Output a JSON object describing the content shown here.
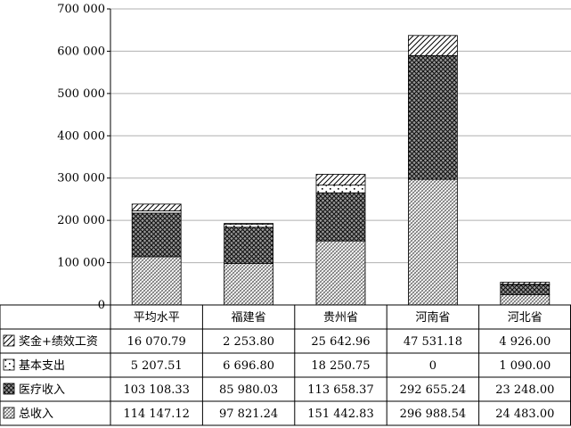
{
  "chart_data": {
    "type": "bar",
    "stacked": true,
    "categories": [
      "平均水平",
      "福建省",
      "贵州省",
      "河南省",
      "河北省"
    ],
    "series": [
      {
        "name": "总收入",
        "values": [
          114147.12,
          97821.24,
          151442.83,
          296988.54,
          24483.0
        ],
        "labels": [
          "114 147.12",
          "97 821.24",
          "151 442.83",
          "296 988.54",
          "24 483.00"
        ],
        "pattern": "dense-hatch"
      },
      {
        "name": "医疗收入",
        "values": [
          103108.33,
          85980.03,
          113658.37,
          292655.24,
          23248.0
        ],
        "labels": [
          "103 108.33",
          "85 980.03",
          "113 658.37",
          "292 655.24",
          "23 248.00"
        ],
        "pattern": "crosshatch"
      },
      {
        "name": "基本支出",
        "values": [
          5207.51,
          6696.8,
          18250.75,
          0,
          1090.0
        ],
        "labels": [
          "5 207.51",
          "6 696.80",
          "18 250.75",
          "0",
          "1 090.00"
        ],
        "pattern": "dots"
      },
      {
        "name": "奖金+绩效工资",
        "values": [
          16070.79,
          2253.8,
          25642.96,
          47531.18,
          4926.0
        ],
        "labels": [
          "16 070.79",
          "2 253.80",
          "25 642.96",
          "47 531.18",
          "4 926.00"
        ],
        "pattern": "diagonal"
      }
    ],
    "ylim": [
      0,
      700000
    ],
    "yticks": [
      0,
      100000,
      200000,
      300000,
      400000,
      500000,
      600000,
      700000
    ],
    "ytick_labels": [
      "0",
      "100 000",
      "200 000",
      "300 000",
      "400 000",
      "500 000",
      "600 000",
      "700 000"
    ],
    "grid": true,
    "legend": "data-table"
  }
}
